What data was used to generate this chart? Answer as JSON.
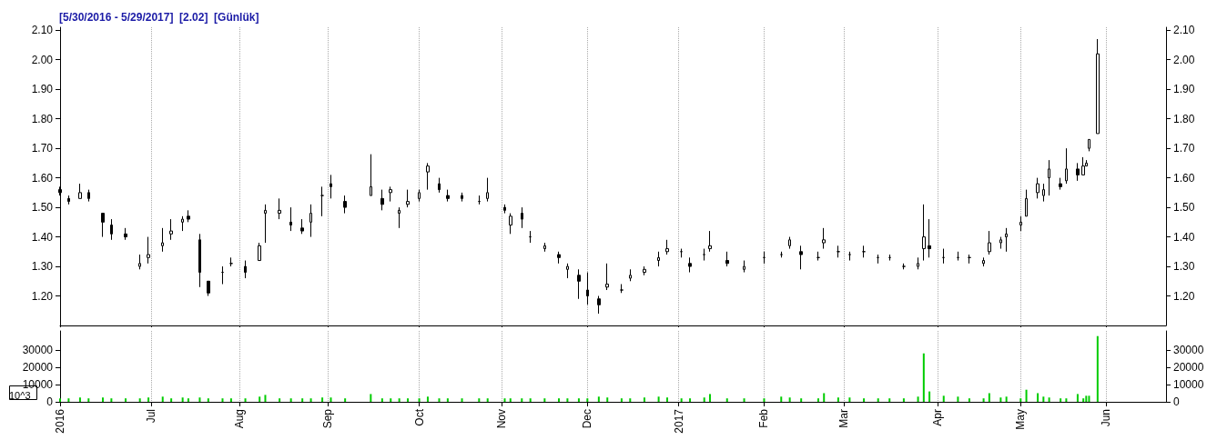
{
  "chart_data": [
    {
      "type": "candlestick",
      "title": "[5/30/2016 - 5/29/2017]  [2.02]  [Günlük]",
      "x": [
        "2016-05-30",
        "2016-06-02",
        "2016-06-06",
        "2016-06-09",
        "2016-06-14",
        "2016-06-17",
        "2016-06-22",
        "2016-06-27",
        "2016-06-30",
        "2016-07-05",
        "2016-07-08",
        "2016-07-12",
        "2016-07-14",
        "2016-07-18",
        "2016-07-21",
        "2016-07-26",
        "2016-07-29",
        "2016-08-03",
        "2016-08-08",
        "2016-08-10",
        "2016-08-15",
        "2016-08-19",
        "2016-08-23",
        "2016-08-26",
        "2016-08-30",
        "2016-09-02",
        "2016-09-07",
        "2016-09-16",
        "2016-09-20",
        "2016-09-23",
        "2016-09-26",
        "2016-09-29",
        "2016-10-03",
        "2016-10-06",
        "2016-10-10",
        "2016-10-13",
        "2016-10-18",
        "2016-10-24",
        "2016-10-27",
        "2016-11-02",
        "2016-11-04",
        "2016-11-08",
        "2016-11-11",
        "2016-11-16",
        "2016-11-21",
        "2016-11-24",
        "2016-11-28",
        "2016-12-01",
        "2016-12-05",
        "2016-12-08",
        "2016-12-13",
        "2016-12-16",
        "2016-12-21",
        "2016-12-26",
        "2016-12-29",
        "2017-01-03",
        "2017-01-06",
        "2017-01-11",
        "2017-01-13",
        "2017-01-19",
        "2017-01-25",
        "2017-02-01",
        "2017-02-07",
        "2017-02-10",
        "2017-02-14",
        "2017-02-20",
        "2017-02-22",
        "2017-02-27",
        "2017-03-03",
        "2017-03-08",
        "2017-03-13",
        "2017-03-17",
        "2017-03-22",
        "2017-03-27",
        "2017-03-29",
        "2017-03-31",
        "2017-04-05",
        "2017-04-10",
        "2017-04-14",
        "2017-04-19",
        "2017-04-21",
        "2017-04-25",
        "2017-04-27",
        "2017-05-02",
        "2017-05-04",
        "2017-05-08",
        "2017-05-10",
        "2017-05-12",
        "2017-05-16",
        "2017-05-18",
        "2017-05-22",
        "2017-05-24",
        "2017-05-25",
        "2017-05-26",
        "2017-05-29"
      ],
      "series": [
        {
          "color": "#000000",
          "ohlc": [
            [
              1.56,
              1.57,
              1.54,
              1.55
            ],
            [
              1.53,
              1.54,
              1.51,
              1.52
            ],
            [
              1.53,
              1.58,
              1.53,
              1.55
            ],
            [
              1.55,
              1.56,
              1.52,
              1.53
            ],
            [
              1.48,
              1.48,
              1.4,
              1.45
            ],
            [
              1.44,
              1.46,
              1.39,
              1.41
            ],
            [
              1.41,
              1.43,
              1.39,
              1.4
            ],
            [
              1.3,
              1.34,
              1.29,
              1.31
            ],
            [
              1.33,
              1.4,
              1.31,
              1.34
            ],
            [
              1.37,
              1.43,
              1.35,
              1.38
            ],
            [
              1.41,
              1.46,
              1.39,
              1.42
            ],
            [
              1.45,
              1.47,
              1.42,
              1.46
            ],
            [
              1.47,
              1.49,
              1.45,
              1.46
            ],
            [
              1.39,
              1.41,
              1.23,
              1.28
            ],
            [
              1.25,
              1.25,
              1.2,
              1.21
            ],
            [
              1.28,
              1.3,
              1.24,
              1.28
            ],
            [
              1.31,
              1.33,
              1.3,
              1.31
            ],
            [
              1.3,
              1.32,
              1.26,
              1.28
            ],
            [
              1.32,
              1.38,
              1.32,
              1.37
            ],
            [
              1.48,
              1.51,
              1.38,
              1.49
            ],
            [
              1.48,
              1.53,
              1.46,
              1.49
            ],
            [
              1.45,
              1.5,
              1.42,
              1.44
            ],
            [
              1.43,
              1.46,
              1.41,
              1.42
            ],
            [
              1.45,
              1.51,
              1.4,
              1.48
            ],
            [
              1.54,
              1.57,
              1.47,
              1.54
            ],
            [
              1.58,
              1.61,
              1.53,
              1.57
            ],
            [
              1.52,
              1.54,
              1.48,
              1.5
            ],
            [
              1.54,
              1.68,
              1.54,
              1.57
            ],
            [
              1.53,
              1.56,
              1.49,
              1.51
            ],
            [
              1.55,
              1.57,
              1.52,
              1.56
            ],
            [
              1.48,
              1.5,
              1.43,
              1.49
            ],
            [
              1.51,
              1.56,
              1.5,
              1.52
            ],
            [
              1.53,
              1.56,
              1.52,
              1.55
            ],
            [
              1.62,
              1.65,
              1.56,
              1.64
            ],
            [
              1.58,
              1.6,
              1.55,
              1.56
            ],
            [
              1.54,
              1.56,
              1.52,
              1.53
            ],
            [
              1.54,
              1.55,
              1.52,
              1.53
            ],
            [
              1.52,
              1.54,
              1.51,
              1.52
            ],
            [
              1.53,
              1.6,
              1.52,
              1.55
            ],
            [
              1.5,
              1.51,
              1.48,
              1.49
            ],
            [
              1.44,
              1.48,
              1.41,
              1.47
            ],
            [
              1.48,
              1.5,
              1.43,
              1.46
            ],
            [
              1.4,
              1.42,
              1.38,
              1.4
            ],
            [
              1.36,
              1.38,
              1.35,
              1.37
            ],
            [
              1.34,
              1.35,
              1.31,
              1.33
            ],
            [
              1.29,
              1.31,
              1.26,
              1.3
            ],
            [
              1.27,
              1.29,
              1.19,
              1.25
            ],
            [
              1.22,
              1.28,
              1.17,
              1.2
            ],
            [
              1.19,
              1.2,
              1.14,
              1.17
            ],
            [
              1.23,
              1.31,
              1.22,
              1.24
            ],
            [
              1.22,
              1.24,
              1.21,
              1.22
            ],
            [
              1.26,
              1.29,
              1.25,
              1.27
            ],
            [
              1.28,
              1.3,
              1.27,
              1.29
            ],
            [
              1.32,
              1.35,
              1.3,
              1.33
            ],
            [
              1.35,
              1.39,
              1.34,
              1.36
            ],
            [
              1.35,
              1.36,
              1.33,
              1.35
            ],
            [
              1.31,
              1.33,
              1.28,
              1.3
            ],
            [
              1.34,
              1.36,
              1.32,
              1.34
            ],
            [
              1.36,
              1.42,
              1.35,
              1.37
            ],
            [
              1.32,
              1.35,
              1.3,
              1.31
            ],
            [
              1.29,
              1.32,
              1.28,
              1.3
            ],
            [
              1.33,
              1.35,
              1.31,
              1.33
            ],
            [
              1.34,
              1.35,
              1.33,
              1.34
            ],
            [
              1.37,
              1.4,
              1.36,
              1.39
            ],
            [
              1.35,
              1.37,
              1.29,
              1.34
            ],
            [
              1.33,
              1.35,
              1.32,
              1.33
            ],
            [
              1.38,
              1.43,
              1.36,
              1.39
            ],
            [
              1.35,
              1.37,
              1.33,
              1.35
            ],
            [
              1.34,
              1.35,
              1.32,
              1.34
            ],
            [
              1.35,
              1.37,
              1.33,
              1.35
            ],
            [
              1.33,
              1.34,
              1.31,
              1.33
            ],
            [
              1.33,
              1.34,
              1.32,
              1.33
            ],
            [
              1.3,
              1.31,
              1.29,
              1.3
            ],
            [
              1.3,
              1.33,
              1.29,
              1.31
            ],
            [
              1.36,
              1.51,
              1.32,
              1.4
            ],
            [
              1.37,
              1.46,
              1.33,
              1.36
            ],
            [
              1.33,
              1.36,
              1.31,
              1.33
            ],
            [
              1.33,
              1.35,
              1.32,
              1.33
            ],
            [
              1.33,
              1.34,
              1.31,
              1.33
            ],
            [
              1.31,
              1.33,
              1.3,
              1.32
            ],
            [
              1.35,
              1.42,
              1.34,
              1.38
            ],
            [
              1.38,
              1.4,
              1.36,
              1.39
            ],
            [
              1.4,
              1.43,
              1.35,
              1.41
            ],
            [
              1.44,
              1.47,
              1.42,
              1.45
            ],
            [
              1.47,
              1.56,
              1.47,
              1.53
            ],
            [
              1.55,
              1.6,
              1.53,
              1.58
            ],
            [
              1.54,
              1.58,
              1.52,
              1.56
            ],
            [
              1.6,
              1.66,
              1.54,
              1.63
            ],
            [
              1.58,
              1.6,
              1.56,
              1.57
            ],
            [
              1.59,
              1.7,
              1.58,
              1.63
            ],
            [
              1.63,
              1.65,
              1.59,
              1.61
            ],
            [
              1.61,
              1.67,
              1.61,
              1.64
            ],
            [
              1.64,
              1.66,
              1.64,
              1.65
            ],
            [
              1.7,
              1.73,
              1.69,
              1.73
            ],
            [
              1.75,
              2.07,
              1.75,
              2.02
            ]
          ]
        }
      ],
      "xlim": [
        "2016-05-30",
        "2017-06-22"
      ],
      "xticks": [
        {
          "value": "2016-05-30",
          "label": null
        },
        {
          "value": "2016-07-01",
          "label": null
        },
        {
          "value": "2016-08-01",
          "label": null
        },
        {
          "value": "2016-09-01",
          "label": null
        },
        {
          "value": "2016-10-03",
          "label": null
        },
        {
          "value": "2016-11-01",
          "label": null
        },
        {
          "value": "2016-12-01",
          "label": null
        },
        {
          "value": "2017-01-02",
          "label": null
        },
        {
          "value": "2017-02-01",
          "label": null
        },
        {
          "value": "2017-03-01",
          "label": null
        },
        {
          "value": "2017-04-03",
          "label": null
        },
        {
          "value": "2017-05-02",
          "label": null
        },
        {
          "value": "2017-06-01",
          "label": null
        }
      ],
      "ylim": [
        1.1,
        2.11
      ],
      "yticks": [
        {
          "value": 1.2,
          "label": "1.20"
        },
        {
          "value": 1.3,
          "label": "1.30"
        },
        {
          "value": 1.4,
          "label": "1.40"
        },
        {
          "value": 1.5,
          "label": "1.50"
        },
        {
          "value": 1.6,
          "label": "1.60"
        },
        {
          "value": 1.7,
          "label": "1.70"
        },
        {
          "value": 1.8,
          "label": "1.80"
        },
        {
          "value": 1.9,
          "label": "1.90"
        },
        {
          "value": 2.0,
          "label": "2.00"
        },
        {
          "value": 2.1,
          "label": "2.10"
        }
      ],
      "y2lim": [
        1.1,
        2.11
      ],
      "y2ticks": [
        {
          "value": 1.2,
          "label": "1.20"
        },
        {
          "value": 1.3,
          "label": "1.30"
        },
        {
          "value": 1.4,
          "label": "1.40"
        },
        {
          "value": 1.5,
          "label": "1.50"
        },
        {
          "value": 1.6,
          "label": "1.60"
        },
        {
          "value": 1.7,
          "label": "1.70"
        },
        {
          "value": 1.8,
          "label": "1.80"
        },
        {
          "value": 1.9,
          "label": "1.90"
        },
        {
          "value": 2.0,
          "label": "2.00"
        },
        {
          "value": 2.1,
          "label": "2.10"
        }
      ],
      "tick_labels": "y",
      "grid": "x"
    },
    {
      "type": "bar",
      "ylabel": "10^3",
      "x": [
        "2016-05-30",
        "2016-06-02",
        "2016-06-06",
        "2016-06-09",
        "2016-06-14",
        "2016-06-17",
        "2016-06-22",
        "2016-06-27",
        "2016-06-30",
        "2016-07-05",
        "2016-07-08",
        "2016-07-12",
        "2016-07-14",
        "2016-07-18",
        "2016-07-21",
        "2016-07-26",
        "2016-07-29",
        "2016-08-03",
        "2016-08-08",
        "2016-08-10",
        "2016-08-15",
        "2016-08-19",
        "2016-08-23",
        "2016-08-26",
        "2016-08-30",
        "2016-09-02",
        "2016-09-07",
        "2016-09-16",
        "2016-09-20",
        "2016-09-23",
        "2016-09-26",
        "2016-09-29",
        "2016-10-03",
        "2016-10-06",
        "2016-10-10",
        "2016-10-13",
        "2016-10-18",
        "2016-10-24",
        "2016-10-27",
        "2016-11-02",
        "2016-11-04",
        "2016-11-08",
        "2016-11-11",
        "2016-11-16",
        "2016-11-21",
        "2016-11-24",
        "2016-11-28",
        "2016-12-01",
        "2016-12-05",
        "2016-12-08",
        "2016-12-13",
        "2016-12-16",
        "2016-12-21",
        "2016-12-26",
        "2016-12-29",
        "2017-01-03",
        "2017-01-06",
        "2017-01-11",
        "2017-01-13",
        "2017-01-19",
        "2017-01-25",
        "2017-02-01",
        "2017-02-07",
        "2017-02-10",
        "2017-02-14",
        "2017-02-20",
        "2017-02-22",
        "2017-02-27",
        "2017-03-03",
        "2017-03-08",
        "2017-03-13",
        "2017-03-17",
        "2017-03-22",
        "2017-03-27",
        "2017-03-29",
        "2017-03-31",
        "2017-04-05",
        "2017-04-10",
        "2017-04-14",
        "2017-04-19",
        "2017-04-21",
        "2017-04-25",
        "2017-04-27",
        "2017-05-02",
        "2017-05-04",
        "2017-05-08",
        "2017-05-10",
        "2017-05-12",
        "2017-05-16",
        "2017-05-18",
        "2017-05-22",
        "2017-05-24",
        "2017-05-25",
        "2017-05-26",
        "2017-05-29"
      ],
      "series": [
        {
          "color": "#00cc00",
          "values": [
            2000,
            2000,
            2500,
            2000,
            2500,
            2000,
            2000,
            2000,
            2500,
            3000,
            2000,
            2500,
            2000,
            2500,
            2000,
            2000,
            2000,
            2000,
            3000,
            4000,
            2000,
            2000,
            2000,
            2000,
            2500,
            2500,
            2000,
            4500,
            2000,
            2000,
            2000,
            2000,
            2000,
            3000,
            2000,
            2000,
            2000,
            2000,
            2000,
            2000,
            2000,
            2000,
            2000,
            2000,
            2000,
            2000,
            2000,
            2000,
            3000,
            2500,
            2000,
            2000,
            2500,
            3000,
            2500,
            2000,
            2000,
            2500,
            4500,
            2000,
            2000,
            2000,
            3000,
            2500,
            2000,
            2000,
            5000,
            2500,
            2500,
            2000,
            2000,
            2000,
            2000,
            3000,
            28000,
            6000,
            3500,
            3000,
            2000,
            2000,
            5000,
            2500,
            3000,
            2000,
            7000,
            5000,
            3000,
            2500,
            2000,
            2000,
            4500,
            2000,
            3500,
            3500,
            38000
          ]
        }
      ],
      "xlim": [
        "2016-05-30",
        "2017-06-22"
      ],
      "xticks": [
        {
          "value": "2016-05-30",
          "label": "2016"
        },
        {
          "value": "2016-07-01",
          "label": "Jul"
        },
        {
          "value": "2016-08-01",
          "label": "Aug"
        },
        {
          "value": "2016-09-01",
          "label": "Sep"
        },
        {
          "value": "2016-10-03",
          "label": "Oct"
        },
        {
          "value": "2016-11-01",
          "label": "Nov"
        },
        {
          "value": "2016-12-01",
          "label": "Dec"
        },
        {
          "value": "2017-01-02",
          "label": "2017"
        },
        {
          "value": "2017-02-01",
          "label": "Feb"
        },
        {
          "value": "2017-03-01",
          "label": "Mar"
        },
        {
          "value": "2017-04-03",
          "label": "Apr"
        },
        {
          "value": "2017-05-02",
          "label": "May"
        },
        {
          "value": "2017-06-01",
          "label": "Jun"
        }
      ],
      "ylim": [
        0,
        41000
      ],
      "yticks": [
        0,
        10000,
        20000,
        30000
      ],
      "y2lim": [
        0,
        41000
      ],
      "y2ticks": [
        0,
        10000,
        20000,
        30000
      ],
      "grid": "x"
    }
  ]
}
